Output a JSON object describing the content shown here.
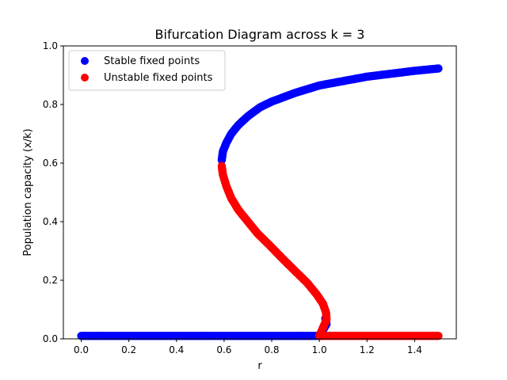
{
  "chart_data": {
    "type": "scatter",
    "title": "Bifurcation Diagram across k = 3",
    "xlabel": "r",
    "ylabel": "Population capacity (x/k)",
    "xlim": [
      -0.075,
      1.575
    ],
    "ylim": [
      0.0,
      1.0
    ],
    "xticks": [
      0.0,
      0.2,
      0.4,
      0.6,
      0.8,
      1.0,
      1.2,
      1.4
    ],
    "xtick_labels": [
      "0.0",
      "0.2",
      "0.4",
      "0.6",
      "0.8",
      "1.0",
      "1.2",
      "1.4"
    ],
    "yticks": [
      0.0,
      0.2,
      0.4,
      0.6,
      0.8,
      1.0
    ],
    "ytick_labels": [
      "0.0",
      "0.2",
      "0.4",
      "0.6",
      "0.8",
      "1.0"
    ],
    "grid": false,
    "legend_position": "top-left",
    "series": [
      {
        "name": "Stable fixed points",
        "color": "#0000ff",
        "points": [
          [
            0.0,
            0.01
          ],
          [
            0.1,
            0.01
          ],
          [
            0.2,
            0.01
          ],
          [
            0.3,
            0.01
          ],
          [
            0.4,
            0.01
          ],
          [
            0.5,
            0.01
          ],
          [
            0.6,
            0.01
          ],
          [
            0.7,
            0.01
          ],
          [
            0.8,
            0.01
          ],
          [
            0.9,
            0.01
          ],
          [
            1.0,
            0.01
          ],
          [
            1.015,
            0.03
          ],
          [
            1.03,
            0.05
          ],
          [
            1.025,
            0.07
          ],
          [
            0.59,
            0.61
          ],
          [
            0.595,
            0.64
          ],
          [
            0.61,
            0.67
          ],
          [
            0.63,
            0.7
          ],
          [
            0.66,
            0.73
          ],
          [
            0.7,
            0.76
          ],
          [
            0.75,
            0.79
          ],
          [
            0.8,
            0.81
          ],
          [
            0.9,
            0.84
          ],
          [
            1.0,
            0.865
          ],
          [
            1.1,
            0.88
          ],
          [
            1.2,
            0.895
          ],
          [
            1.3,
            0.905
          ],
          [
            1.4,
            0.915
          ],
          [
            1.5,
            0.923
          ]
        ]
      },
      {
        "name": "Unstable fixed points",
        "color": "#ff0000",
        "points": [
          [
            0.59,
            0.59
          ],
          [
            0.595,
            0.56
          ],
          [
            0.61,
            0.52
          ],
          [
            0.63,
            0.48
          ],
          [
            0.66,
            0.44
          ],
          [
            0.7,
            0.4
          ],
          [
            0.74,
            0.36
          ],
          [
            0.79,
            0.32
          ],
          [
            0.85,
            0.27
          ],
          [
            0.9,
            0.23
          ],
          [
            0.95,
            0.19
          ],
          [
            0.99,
            0.15
          ],
          [
            1.015,
            0.12
          ],
          [
            1.028,
            0.09
          ],
          [
            1.03,
            0.065
          ],
          [
            1.0,
            0.01
          ],
          [
            1.1,
            0.01
          ],
          [
            1.2,
            0.01
          ],
          [
            1.3,
            0.01
          ],
          [
            1.4,
            0.01
          ],
          [
            1.5,
            0.01
          ]
        ]
      }
    ]
  }
}
